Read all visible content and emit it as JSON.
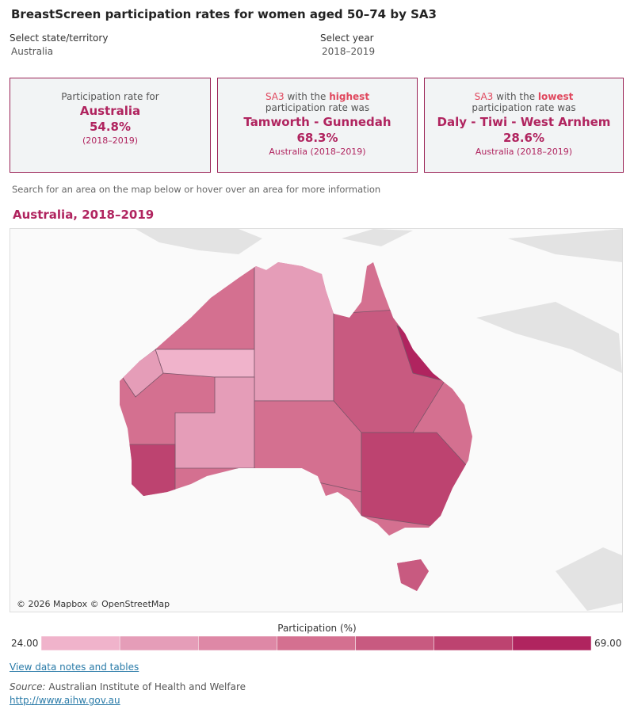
{
  "header": {
    "title": "BreastScreen participation rates for women aged 50–74 by SA3"
  },
  "filters": [
    {
      "label": "Select state/territory",
      "value": "Australia"
    },
    {
      "label": "Select year",
      "value": "2018–2019"
    }
  ],
  "cards": [
    {
      "intro": [
        "Participation rate for"
      ],
      "name": "Australia",
      "rate": "54.8%",
      "note": "(2018–2019)"
    },
    {
      "intro": [
        "SA3",
        "with the",
        "highest"
      ],
      "intro2": "participation rate was",
      "name": "Tamworth - Gunnedah",
      "rate": "68.3%",
      "note": "Australia (2018–2019)"
    },
    {
      "intro": [
        "SA3",
        "with the",
        "lowest"
      ],
      "intro2": "participation rate was",
      "name": "Daly - Tiwi - West Arnhem",
      "rate": "28.6%",
      "note": "Australia (2018–2019)"
    }
  ],
  "hint": "Search for an area on the map below or hover over an area for more information",
  "map": {
    "title": "Australia, 2018–2019",
    "attribution": "© 2026 Mapbox © OpenStreetMap"
  },
  "legend": {
    "title": "Participation (%)",
    "min": "24.00",
    "max": "69.00",
    "colors": [
      "#f0b3cb",
      "#e59db8",
      "#de88a6",
      "#d47090",
      "#c85a80",
      "#bd4370",
      "#b0245f"
    ]
  },
  "footer": {
    "link": "View data notes and tables",
    "source_label": "Source:",
    "source": "Australian Institute of Health and Welfare",
    "url": "http://www.aihw.gov.au"
  }
}
